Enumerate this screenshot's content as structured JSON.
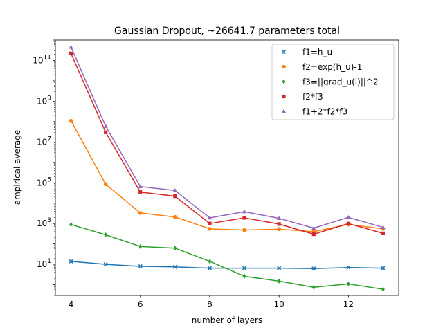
{
  "chart_data": {
    "type": "line",
    "title": "Gaussian Dropout,  ~26641.7 parameters total",
    "xlabel": "number of layers",
    "ylabel": "ampirical average",
    "x": [
      4,
      5,
      6,
      7,
      8,
      9,
      10,
      11,
      12,
      13
    ],
    "xlim": [
      3.55,
      13.45
    ],
    "xticks": [
      4,
      6,
      8,
      10,
      12
    ],
    "yscale": "log",
    "ylim": [
      0.3,
      1000000000000.0
    ],
    "yticks": [
      {
        "value": 10,
        "base": "10",
        "exp": "1"
      },
      {
        "value": 1000,
        "base": "10",
        "exp": "3"
      },
      {
        "value": 100000,
        "base": "10",
        "exp": "5"
      },
      {
        "value": 10000000,
        "base": "10",
        "exp": "7"
      },
      {
        "value": 1000000000,
        "base": "10",
        "exp": "9"
      },
      {
        "value": 100000000000,
        "base": "10",
        "exp": "11"
      }
    ],
    "grid": false,
    "legend_position": "top-right",
    "series": [
      {
        "name": "f1=h_u",
        "color": "#1f77b4",
        "marker": "x",
        "values": [
          14,
          10,
          8,
          7.5,
          6.5,
          6.5,
          6.5,
          6.2,
          7,
          6.5
        ]
      },
      {
        "name": "f2=exp(h_u)-1",
        "color": "#ff7f0e",
        "marker": "circle",
        "values": [
          110000000,
          85000,
          3300,
          2100,
          550,
          480,
          530,
          400,
          900,
          550
        ]
      },
      {
        "name": "f3=||grad_u(l)||^2",
        "color": "#2ca02c",
        "marker": "diamond",
        "values": [
          900,
          280,
          75,
          62,
          14,
          2.6,
          1.5,
          0.75,
          1.1,
          0.6
        ]
      },
      {
        "name": "f2*f3",
        "color": "#d62728",
        "marker": "square",
        "values": [
          220000000000,
          30000000,
          35000,
          22000,
          1000,
          1900,
          950,
          300,
          1000,
          330
        ]
      },
      {
        "name": "f1+2*f2*f3",
        "color": "#9467bd",
        "marker": "triangle",
        "values": [
          450000000000,
          60000000,
          65000,
          42000,
          1900,
          3800,
          1800,
          600,
          2000,
          650
        ]
      }
    ]
  }
}
